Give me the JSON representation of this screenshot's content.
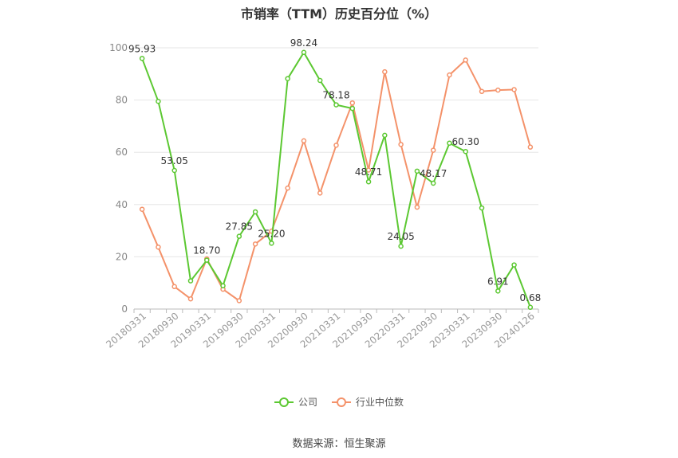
{
  "chart_data": {
    "type": "line",
    "title": "市销率（TTM）历史百分位（%）",
    "x_tick_labels": [
      "20180331",
      "20180930",
      "20190331",
      "20190930",
      "20200331",
      "20200930",
      "20210331",
      "20210930",
      "20220331",
      "20220930",
      "20230331",
      "20230930",
      "20240126"
    ],
    "ylim": [
      0,
      100
    ],
    "y_ticks": [
      0,
      20,
      40,
      60,
      80,
      100
    ],
    "grid": true,
    "legend_position": "bottom",
    "series": [
      {
        "name": "公司",
        "color": "#5cc832",
        "values": [
          95.93,
          79.5,
          53.05,
          10.8,
          18.7,
          8.9,
          27.85,
          37.2,
          25.2,
          88.2,
          98.24,
          87.5,
          78.18,
          76.8,
          48.71,
          66.5,
          24.05,
          52.8,
          48.17,
          63.5,
          60.3,
          38.7,
          6.91,
          16.9,
          0.68
        ],
        "data_labels": {
          "0": "95.93",
          "2": "53.05",
          "4": "18.70",
          "6": "27.85",
          "8": "25.20",
          "10": "98.24",
          "12": "78.18",
          "14": "48.71",
          "16": "24.05",
          "18": "48.17",
          "20": "60.30",
          "22": "6.91",
          "24": "0.68"
        }
      },
      {
        "name": "行业中位数",
        "color": "#f4926a",
        "values": [
          38.2,
          23.7,
          8.6,
          3.9,
          19.2,
          7.6,
          3.2,
          24.9,
          29.8,
          46.3,
          64.4,
          44.4,
          62.7,
          78.9,
          53.2,
          90.8,
          63.0,
          39.0,
          60.8,
          89.6,
          95.3,
          83.3,
          83.8,
          84.0,
          62.0
        ]
      }
    ]
  },
  "source_text": "数据来源：恒生聚源"
}
